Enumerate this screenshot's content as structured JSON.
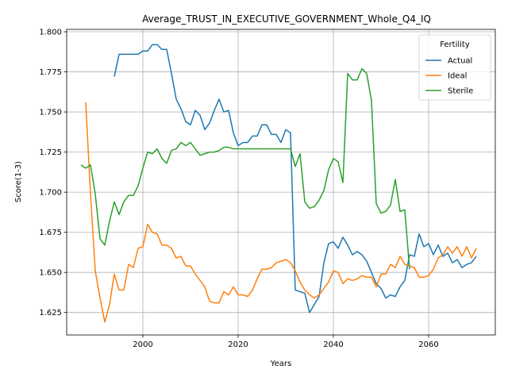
{
  "chart_data": {
    "type": "line",
    "title": "Average_TRUST_IN_EXECUTIVE_GOVERNMENT_Whole_Q4_IQ",
    "xlabel": "Years",
    "ylabel": "Score(1-3)",
    "xlim": [
      1984,
      2074
    ],
    "ylim": [
      1.611,
      1.8015
    ],
    "xticks": [
      2000,
      2020,
      2040,
      2060
    ],
    "yticks": [
      "1.625",
      "1.650",
      "1.675",
      "1.700",
      "1.725",
      "1.750",
      "1.775",
      "1.800"
    ],
    "grid": true,
    "legend": {
      "title": "Fertility",
      "placement": "upper right"
    },
    "series": [
      {
        "name": "Actual",
        "color": "#1f77b4",
        "x": [
          1994,
          1995,
          1996,
          1997,
          1998,
          1999,
          2000,
          2001,
          2002,
          2003,
          2004,
          2005,
          2006,
          2007,
          2008,
          2009,
          2010,
          2011,
          2012,
          2013,
          2014,
          2015,
          2016,
          2017,
          2018,
          2019,
          2020,
          2021,
          2022,
          2023,
          2024,
          2025,
          2026,
          2027,
          2028,
          2029,
          2030,
          2031,
          2032,
          2033,
          2034,
          2035,
          2036,
          2037,
          2038,
          2039,
          2040,
          2041,
          2042,
          2043,
          2044,
          2045,
          2046,
          2047,
          2048,
          2049,
          2050,
          2051,
          2052,
          2053,
          2054,
          2055,
          2056,
          2057,
          2058,
          2059,
          2060,
          2061,
          2062,
          2063,
          2064,
          2065,
          2066,
          2067,
          2068,
          2069,
          2070
        ],
        "values": [
          1.772,
          1.786,
          1.786,
          1.786,
          1.786,
          1.786,
          1.788,
          1.788,
          1.792,
          1.792,
          1.789,
          1.789,
          1.774,
          1.758,
          1.752,
          1.744,
          1.742,
          1.751,
          1.748,
          1.739,
          1.743,
          1.751,
          1.758,
          1.75,
          1.751,
          1.737,
          1.729,
          1.731,
          1.731,
          1.735,
          1.735,
          1.742,
          1.742,
          1.736,
          1.736,
          1.731,
          1.739,
          1.737,
          1.639,
          1.638,
          1.637,
          1.625,
          1.63,
          1.635,
          1.656,
          1.668,
          1.669,
          1.665,
          1.672,
          1.667,
          1.661,
          1.663,
          1.661,
          1.657,
          1.65,
          1.643,
          1.64,
          1.634,
          1.636,
          1.635,
          1.641,
          1.645,
          1.661,
          1.66,
          1.674,
          1.666,
          1.668,
          1.661,
          1.667,
          1.66,
          1.662,
          1.656,
          1.658,
          1.653,
          1.655,
          1.656,
          1.66
        ]
      },
      {
        "name": "Ideal",
        "color": "#ff7f0e",
        "x": [
          1988,
          1989,
          1990,
          1991,
          1992,
          1993,
          1994,
          1995,
          1996,
          1997,
          1998,
          1999,
          2000,
          2001,
          2002,
          2003,
          2004,
          2005,
          2006,
          2007,
          2008,
          2009,
          2010,
          2011,
          2012,
          2013,
          2014,
          2015,
          2016,
          2017,
          2018,
          2019,
          2020,
          2021,
          2022,
          2023,
          2024,
          2025,
          2026,
          2027,
          2028,
          2029,
          2030,
          2031,
          2032,
          2033,
          2034,
          2035,
          2036,
          2037,
          2038,
          2039,
          2040,
          2041,
          2042,
          2043,
          2044,
          2045,
          2046,
          2047,
          2048,
          2049,
          2050,
          2051,
          2052,
          2053,
          2054,
          2055,
          2056,
          2057,
          2058,
          2059,
          2060,
          2061,
          2062,
          2063,
          2064,
          2065,
          2066,
          2067,
          2068,
          2069,
          2070
        ],
        "values": [
          1.756,
          1.699,
          1.651,
          1.634,
          1.619,
          1.63,
          1.649,
          1.639,
          1.639,
          1.655,
          1.653,
          1.665,
          1.666,
          1.68,
          1.675,
          1.674,
          1.667,
          1.667,
          1.665,
          1.659,
          1.66,
          1.654,
          1.654,
          1.649,
          1.645,
          1.641,
          1.632,
          1.631,
          1.631,
          1.638,
          1.636,
          1.641,
          1.636,
          1.636,
          1.635,
          1.639,
          1.646,
          1.652,
          1.652,
          1.653,
          1.656,
          1.657,
          1.658,
          1.656,
          1.651,
          1.644,
          1.639,
          1.636,
          1.634,
          1.636,
          1.64,
          1.644,
          1.651,
          1.65,
          1.643,
          1.646,
          1.645,
          1.646,
          1.648,
          1.647,
          1.647,
          1.641,
          1.649,
          1.649,
          1.655,
          1.653,
          1.66,
          1.655,
          1.654,
          1.653,
          1.647,
          1.647,
          1.648,
          1.652,
          1.659,
          1.661,
          1.666,
          1.662,
          1.666,
          1.66,
          1.666,
          1.659,
          1.665
        ]
      },
      {
        "name": "Sterile",
        "color": "#2ca02c",
        "x": [
          1987,
          1988,
          1989,
          1990,
          1991,
          1992,
          1993,
          1994,
          1995,
          1996,
          1997,
          1998,
          1999,
          2000,
          2001,
          2002,
          2003,
          2004,
          2005,
          2006,
          2007,
          2008,
          2009,
          2010,
          2011,
          2012,
          2013,
          2014,
          2015,
          2016,
          2017,
          2018,
          2019,
          2020,
          2021,
          2022,
          2023,
          2024,
          2025,
          2026,
          2027,
          2028,
          2029,
          2030,
          2031,
          2032,
          2033,
          2034,
          2035,
          2036,
          2037,
          2038,
          2039,
          2040,
          2041,
          2042,
          2043,
          2044,
          2045,
          2046,
          2047,
          2048,
          2049,
          2050,
          2051,
          2052,
          2053,
          2054,
          2055,
          2056
        ],
        "values": [
          1.717,
          1.715,
          1.717,
          1.699,
          1.671,
          1.667,
          1.682,
          1.694,
          1.686,
          1.694,
          1.698,
          1.698,
          1.704,
          1.715,
          1.725,
          1.724,
          1.727,
          1.721,
          1.718,
          1.726,
          1.727,
          1.731,
          1.729,
          1.731,
          1.727,
          1.723,
          1.724,
          1.725,
          1.725,
          1.726,
          1.728,
          1.728,
          1.727,
          1.727,
          1.727,
          1.727,
          1.727,
          1.727,
          1.727,
          1.727,
          1.727,
          1.727,
          1.727,
          1.727,
          1.727,
          1.716,
          1.724,
          1.694,
          1.69,
          1.691,
          1.695,
          1.701,
          1.714,
          1.721,
          1.719,
          1.706,
          1.774,
          1.77,
          1.77,
          1.777,
          1.774,
          1.757,
          1.693,
          1.687,
          1.688,
          1.692,
          1.708,
          1.688,
          1.689,
          1.652
        ]
      }
    ]
  }
}
